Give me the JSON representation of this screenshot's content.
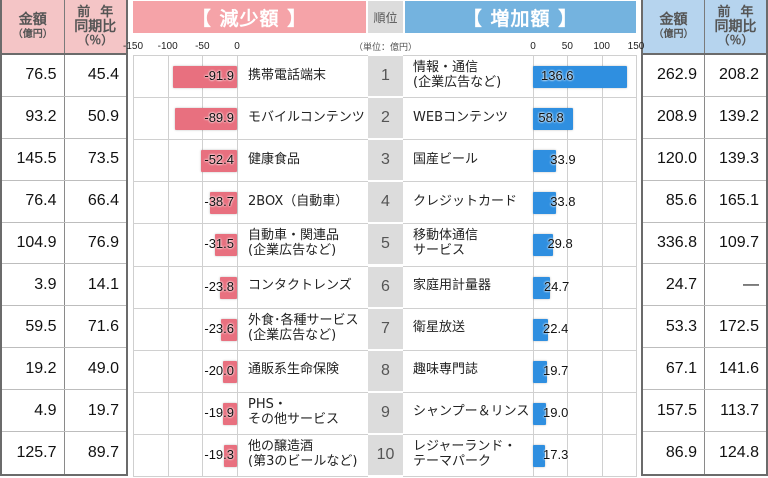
{
  "left_table": {
    "col1_header": {
      "main": "金額",
      "sub": "（億円）"
    },
    "col2_header": {
      "line1": "前年",
      "line2": "同期比",
      "sub": "（％）"
    },
    "rows": [
      {
        "amount": "76.5",
        "yoy": "45.4"
      },
      {
        "amount": "93.2",
        "yoy": "50.9"
      },
      {
        "amount": "145.5",
        "yoy": "73.5"
      },
      {
        "amount": "76.4",
        "yoy": "66.4"
      },
      {
        "amount": "104.9",
        "yoy": "76.9"
      },
      {
        "amount": "3.9",
        "yoy": "14.1"
      },
      {
        "amount": "59.5",
        "yoy": "71.6"
      },
      {
        "amount": "19.2",
        "yoy": "49.0"
      },
      {
        "amount": "4.9",
        "yoy": "19.7"
      },
      {
        "amount": "125.7",
        "yoy": "89.7"
      }
    ]
  },
  "right_table": {
    "col1_header": {
      "main": "金額",
      "sub": "（億円）"
    },
    "col2_header": {
      "line1": "前年",
      "line2": "同期比",
      "sub": "（％）"
    },
    "rows": [
      {
        "amount": "262.9",
        "yoy": "208.2"
      },
      {
        "amount": "208.9",
        "yoy": "139.2"
      },
      {
        "amount": "120.0",
        "yoy": "139.3"
      },
      {
        "amount": "85.6",
        "yoy": "165.1"
      },
      {
        "amount": "336.8",
        "yoy": "109.7"
      },
      {
        "amount": "24.7",
        "yoy": "—"
      },
      {
        "amount": "53.3",
        "yoy": "172.5"
      },
      {
        "amount": "67.1",
        "yoy": "141.6"
      },
      {
        "amount": "157.5",
        "yoy": "113.7"
      },
      {
        "amount": "86.9",
        "yoy": "124.8"
      }
    ]
  },
  "headers": {
    "decrease": "【 減少額 】",
    "rank": "順位",
    "increase": "【 増加額 】",
    "unit": "（単位：億円）"
  },
  "colors": {
    "decrease_header": "#f5a3a8",
    "decrease_bar": "#e8707f",
    "increase_header": "#74b3df",
    "increase_bar": "#2f8fe0",
    "left_table_header": "#f4c5c6",
    "right_table_header": "#b6d4ee",
    "rank_bg": "#dcdcdc"
  },
  "chart_data": [
    {
      "type": "bar",
      "orientation": "horizontal",
      "title": "【 減少額 】",
      "unit": "億円",
      "xlim": [
        -150,
        0
      ],
      "xticks": [
        "-150",
        "-100",
        "-50",
        "0"
      ],
      "grid": true,
      "categories": [
        "携帯電話端末",
        "モバイルコンテンツ",
        "健康食品",
        "2BOX（自動車）",
        "自動車・関連品（企業広告など）",
        "コンタクトレンズ",
        "外食・各種サービス（企業広告など）",
        "通販系生命保険",
        "PHS・その他サービス",
        "他の醸造酒（第3のビールなど）"
      ],
      "values": [
        -91.9,
        -89.9,
        -52.4,
        -38.7,
        -31.5,
        -23.8,
        -23.6,
        -20.0,
        -19.9,
        -19.3
      ],
      "labels": [
        "-91.9",
        "-89.9",
        "-52.4",
        "-38.7",
        "-31.5",
        "-23.8",
        "-23.6",
        "-20.0",
        "-19.9",
        "-19.3"
      ],
      "label_lines": [
        [
          "携帯電話端末"
        ],
        [
          "モバイルコンテンツ"
        ],
        [
          "健康食品"
        ],
        [
          "2BOX（自動車）"
        ],
        [
          "自動車・関連品",
          "(企業広告など)"
        ],
        [
          "コンタクトレンズ"
        ],
        [
          "外食･各種サービス",
          "(企業広告など)"
        ],
        [
          "通販系生命保険"
        ],
        [
          "PHS・",
          "その他サービス"
        ],
        [
          "他の醸造酒",
          "(第3のビールなど)"
        ]
      ]
    },
    {
      "type": "bar",
      "orientation": "horizontal",
      "title": "【 増加額 】",
      "unit": "億円",
      "xlim": [
        0,
        150
      ],
      "xticks": [
        "0",
        "50",
        "100",
        "150"
      ],
      "grid": true,
      "categories": [
        "情報・通信（企業広告など）",
        "WEBコンテンツ",
        "国産ビール",
        "クレジットカード",
        "移動体通信サービス",
        "家庭用計量器",
        "衛星放送",
        "趣味専門誌",
        "シャンプー＆リンス",
        "レジャーランド・テーマパーク"
      ],
      "values": [
        136.6,
        58.8,
        33.9,
        33.8,
        29.8,
        24.7,
        22.4,
        19.7,
        19.0,
        17.3
      ],
      "labels": [
        "136.6",
        "58.8",
        "33.9",
        "33.8",
        "29.8",
        "24.7",
        "22.4",
        "19.7",
        "19.0",
        "17.3"
      ],
      "label_lines": [
        [
          "情報・通信",
          "(企業広告など)"
        ],
        [
          "WEBコンテンツ"
        ],
        [
          "国産ビール"
        ],
        [
          "クレジットカード"
        ],
        [
          "移動体通信",
          "サービス"
        ],
        [
          "家庭用計量器"
        ],
        [
          "衛星放送"
        ],
        [
          "趣味専門誌"
        ],
        [
          "シャンプー＆リンス"
        ],
        [
          "レジャーランド・",
          "テーマパーク"
        ]
      ]
    }
  ],
  "ranks": [
    "1",
    "2",
    "3",
    "4",
    "5",
    "6",
    "7",
    "8",
    "9",
    "10"
  ]
}
